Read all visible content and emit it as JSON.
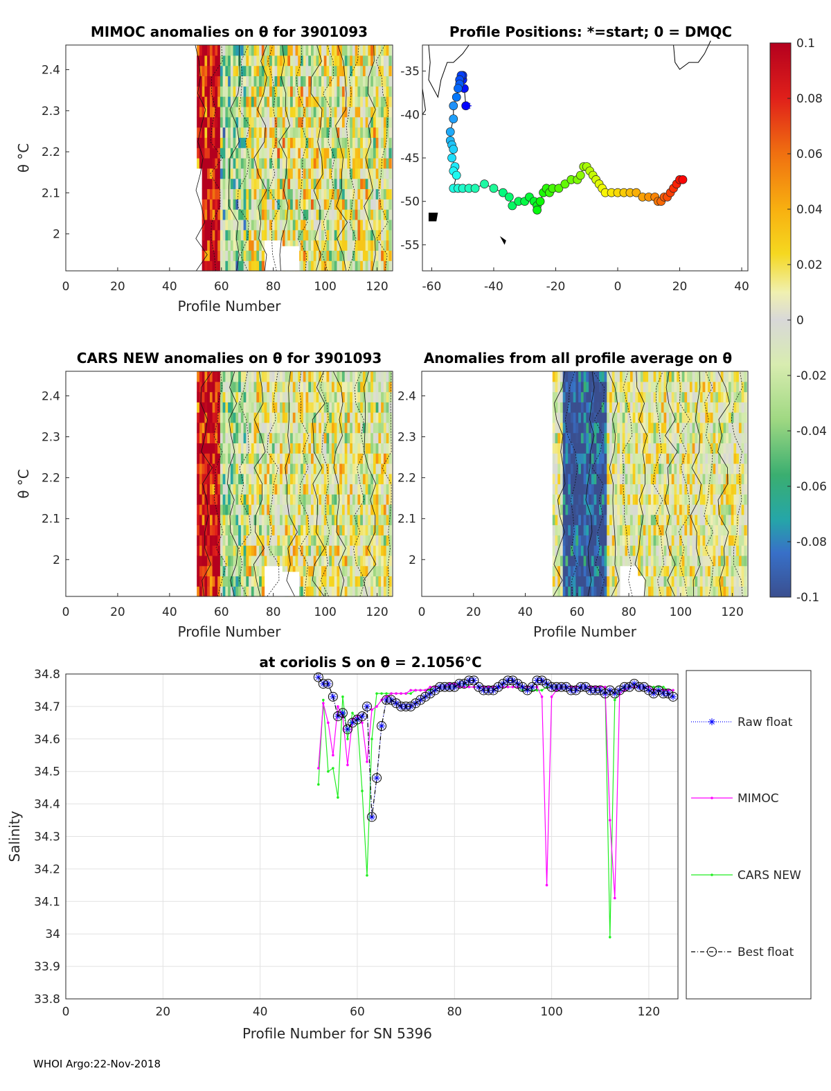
{
  "panels": {
    "mimoc": {
      "title": "MIMOC anomalies on θ  for 3901093",
      "xlabel": "Profile Number",
      "ylabel": "θ °C"
    },
    "positions": {
      "title": "Profile Positions: *=start; 0 = DMQC"
    },
    "cars": {
      "title": "CARS NEW anomalies on θ for 3901093",
      "xlabel": "Profile Number",
      "ylabel": "θ °C"
    },
    "avg": {
      "title": "Anomalies from all profile average on θ",
      "xlabel": "Profile Number"
    }
  },
  "ticks": {
    "profile_x": [
      "0",
      "20",
      "40",
      "60",
      "80",
      "100",
      "120"
    ],
    "theta_y": [
      "2",
      "2.1",
      "2.2",
      "2.3",
      "2.4"
    ],
    "lon_x": [
      "-60",
      "-40",
      "-20",
      "0",
      "20",
      "40"
    ],
    "lat_y": [
      "-35",
      "-40",
      "-45",
      "-50",
      "-55"
    ],
    "colorbar": [
      "0.1",
      "0.08",
      "0.06",
      "0.04",
      "0.02",
      "0",
      "-0.02",
      "-0.04",
      "-0.06",
      "-0.08",
      "-0.1"
    ],
    "sal_y": [
      "34.8",
      "34.7",
      "34.6",
      "34.5",
      "34.4",
      "34.3",
      "34.2",
      "34.1",
      "34",
      "33.9",
      "33.8"
    ],
    "sal_x": [
      "0",
      "20",
      "40",
      "60",
      "80",
      "100",
      "120"
    ]
  },
  "footer": "WHOI Argo:22-Nov-2018",
  "chart_data": [
    {
      "type": "heatmap",
      "title": "MIMOC anomalies on θ  for 3901093",
      "xlabel": "Profile Number",
      "ylabel": "θ °C",
      "xlim": [
        0,
        126
      ],
      "ylim": [
        1.91,
        2.46
      ],
      "clim": [
        -0.1,
        0.1
      ],
      "profiles_start": 51
    },
    {
      "type": "scatter",
      "title": "Profile Positions: *=start; 0 = DMQC",
      "xlim": [
        -63,
        42
      ],
      "ylim": [
        -58,
        -32
      ],
      "track": [
        [
          -49,
          -39
        ],
        [
          -49.5,
          -37
        ],
        [
          -50,
          -36
        ],
        [
          -50,
          -35.5
        ],
        [
          -50.5,
          -35.5
        ],
        [
          -51,
          -36
        ],
        [
          -51,
          -36.5
        ],
        [
          -51.5,
          -37
        ],
        [
          -52,
          -38
        ],
        [
          -53,
          -39
        ],
        [
          -53,
          -40.5
        ],
        [
          -54,
          -42
        ],
        [
          -54,
          -43
        ],
        [
          -53.5,
          -43.5
        ],
        [
          -53,
          -44
        ],
        [
          -53.5,
          -45
        ],
        [
          -52.5,
          -46
        ],
        [
          -53,
          -46.5
        ],
        [
          -52,
          -47
        ],
        [
          -53,
          -48.5
        ],
        [
          -51.5,
          -48.5
        ],
        [
          -50,
          -48.5
        ],
        [
          -48,
          -48.5
        ],
        [
          -46,
          -48.5
        ],
        [
          -43,
          -48
        ],
        [
          -40,
          -48.5
        ],
        [
          -37,
          -49
        ],
        [
          -35,
          -49.5
        ],
        [
          -34,
          -50.5
        ],
        [
          -32,
          -50
        ],
        [
          -30,
          -50
        ],
        [
          -28.5,
          -49.5
        ],
        [
          -27,
          -50
        ],
        [
          -26,
          -50.5
        ],
        [
          -26,
          -51
        ],
        [
          -25,
          -50
        ],
        [
          -24,
          -49
        ],
        [
          -23,
          -48.5
        ],
        [
          -22,
          -49
        ],
        [
          -21,
          -48.5
        ],
        [
          -19,
          -48.5
        ],
        [
          -17,
          -48
        ],
        [
          -15,
          -47.5
        ],
        [
          -13,
          -47.5
        ],
        [
          -12,
          -47
        ],
        [
          -11,
          -46
        ],
        [
          -10,
          -46
        ],
        [
          -9,
          -46.5
        ],
        [
          -8,
          -47
        ],
        [
          -7,
          -47.5
        ],
        [
          -6,
          -48
        ],
        [
          -5,
          -48.5
        ],
        [
          -4,
          -49
        ],
        [
          -2,
          -49
        ],
        [
          0,
          -49
        ],
        [
          2,
          -49
        ],
        [
          4,
          -49
        ],
        [
          6,
          -49
        ],
        [
          8,
          -49.5
        ],
        [
          10,
          -49.5
        ],
        [
          12,
          -49.5
        ],
        [
          13,
          -50
        ],
        [
          14,
          -50
        ],
        [
          15,
          -49.5
        ],
        [
          16,
          -49.5
        ],
        [
          17,
          -49
        ],
        [
          18,
          -48.5
        ],
        [
          19,
          -48
        ],
        [
          20,
          -47.5
        ],
        [
          21,
          -47.5
        ]
      ],
      "start": [
        -48.5,
        -39
      ]
    },
    {
      "type": "heatmap",
      "title": "CARS NEW anomalies on θ for 3901093",
      "xlabel": "Profile Number",
      "ylabel": "θ °C",
      "xlim": [
        0,
        126
      ],
      "ylim": [
        1.91,
        2.46
      ],
      "clim": [
        -0.1,
        0.1
      ]
    },
    {
      "type": "heatmap",
      "title": "Anomalies from all profile average on θ",
      "xlabel": "Profile Number",
      "xlim": [
        0,
        126
      ],
      "ylim": [
        1.91,
        2.46
      ],
      "clim": [
        -0.1,
        0.1
      ]
    },
    {
      "type": "line",
      "title": "at coriolis S on θ = 2.1056°C",
      "xlabel": "Profile Number for SN 5396",
      "ylabel": "Salinity",
      "xlim": [
        0,
        126
      ],
      "ylim": [
        33.8,
        34.8
      ],
      "x": [
        52,
        53,
        54,
        55,
        56,
        57,
        58,
        59,
        60,
        61,
        62,
        63,
        64,
        65,
        66,
        67,
        68,
        69,
        70,
        71,
        72,
        73,
        74,
        75,
        76,
        77,
        78,
        79,
        80,
        81,
        82,
        83,
        84,
        85,
        86,
        87,
        88,
        89,
        90,
        91,
        92,
        93,
        94,
        95,
        96,
        97,
        98,
        99,
        100,
        101,
        102,
        103,
        104,
        105,
        106,
        107,
        108,
        109,
        110,
        111,
        112,
        113,
        114,
        115,
        116,
        117,
        118,
        119,
        120,
        121,
        122,
        123,
        124,
        125
      ],
      "series": [
        {
          "name": "Raw float",
          "values": [
            34.79,
            34.77,
            34.77,
            34.73,
            34.67,
            34.68,
            34.63,
            34.65,
            34.66,
            34.67,
            34.7,
            34.36,
            34.48,
            34.64,
            34.72,
            34.72,
            34.71,
            34.7,
            34.7,
            34.7,
            34.71,
            34.72,
            34.73,
            34.74,
            34.75,
            34.76,
            34.76,
            34.76,
            34.76,
            34.77,
            34.77,
            34.78,
            34.78,
            34.76,
            34.75,
            34.75,
            34.75,
            34.76,
            34.77,
            34.78,
            34.78,
            34.77,
            34.76,
            34.75,
            34.76,
            34.78,
            34.78,
            34.77,
            34.76,
            34.76,
            34.76,
            34.76,
            34.75,
            34.75,
            34.76,
            34.76,
            34.75,
            34.75,
            34.75,
            34.74,
            34.75,
            34.74,
            34.75,
            34.76,
            34.76,
            34.77,
            34.76,
            34.76,
            34.75,
            34.74,
            34.75,
            34.74,
            34.74,
            34.73
          ]
        },
        {
          "name": "MIMOC",
          "values": [
            34.51,
            34.71,
            34.65,
            34.55,
            34.7,
            34.67,
            34.52,
            34.66,
            34.67,
            34.65,
            34.53,
            34.69,
            34.7,
            34.72,
            34.73,
            34.74,
            34.74,
            34.74,
            34.74,
            34.75,
            34.75,
            34.75,
            34.75,
            34.76,
            34.76,
            34.76,
            34.76,
            34.77,
            34.77,
            34.76,
            34.76,
            34.76,
            34.76,
            34.76,
            34.76,
            34.76,
            34.76,
            34.76,
            34.76,
            34.76,
            34.76,
            34.76,
            34.76,
            34.76,
            34.76,
            34.76,
            34.73,
            34.15,
            34.73,
            34.75,
            34.76,
            34.76,
            34.76,
            34.76,
            34.76,
            34.76,
            34.76,
            34.76,
            34.76,
            34.76,
            34.35,
            34.11,
            34.74,
            34.75,
            34.76,
            34.76,
            34.76,
            34.76,
            34.76,
            34.75,
            34.75,
            34.75,
            34.75,
            34.75
          ]
        },
        {
          "name": "CARS NEW",
          "values": [
            34.46,
            34.72,
            34.5,
            34.51,
            34.42,
            34.73,
            34.6,
            34.68,
            34.66,
            34.44,
            34.18,
            34.6,
            34.74,
            34.74,
            34.74,
            34.74,
            34.74,
            34.74,
            34.74,
            34.74,
            34.75,
            34.75,
            34.75,
            34.75,
            34.76,
            34.76,
            34.76,
            34.76,
            34.76,
            34.77,
            34.77,
            34.76,
            34.76,
            34.76,
            34.76,
            34.76,
            34.76,
            34.76,
            34.76,
            34.76,
            34.76,
            34.76,
            34.75,
            34.75,
            34.75,
            34.75,
            34.75,
            34.76,
            34.76,
            34.76,
            34.76,
            34.76,
            34.76,
            34.76,
            34.76,
            34.76,
            34.76,
            34.76,
            34.76,
            34.76,
            33.99,
            34.72,
            34.75,
            34.76,
            34.76,
            34.76,
            34.76,
            34.76,
            34.76,
            34.76,
            34.76,
            34.76,
            34.75,
            34.75
          ]
        },
        {
          "name": "Best float",
          "values": [
            34.79,
            34.77,
            34.77,
            34.73,
            34.67,
            34.68,
            34.63,
            34.65,
            34.66,
            34.67,
            34.7,
            34.36,
            34.48,
            34.64,
            34.72,
            34.72,
            34.71,
            34.7,
            34.7,
            34.7,
            34.71,
            34.72,
            34.73,
            34.74,
            34.75,
            34.76,
            34.76,
            34.76,
            34.76,
            34.77,
            34.77,
            34.78,
            34.78,
            34.76,
            34.75,
            34.75,
            34.75,
            34.76,
            34.77,
            34.78,
            34.78,
            34.77,
            34.76,
            34.75,
            34.76,
            34.78,
            34.78,
            34.77,
            34.76,
            34.76,
            34.76,
            34.76,
            34.75,
            34.75,
            34.76,
            34.76,
            34.75,
            34.75,
            34.75,
            34.74,
            34.75,
            34.74,
            34.75,
            34.76,
            34.76,
            34.77,
            34.76,
            34.76,
            34.75,
            34.74,
            34.75,
            34.74,
            34.74,
            34.73
          ]
        }
      ],
      "legend": [
        "Raw float",
        "MIMOC",
        "CARS NEW",
        "Best float"
      ]
    }
  ]
}
